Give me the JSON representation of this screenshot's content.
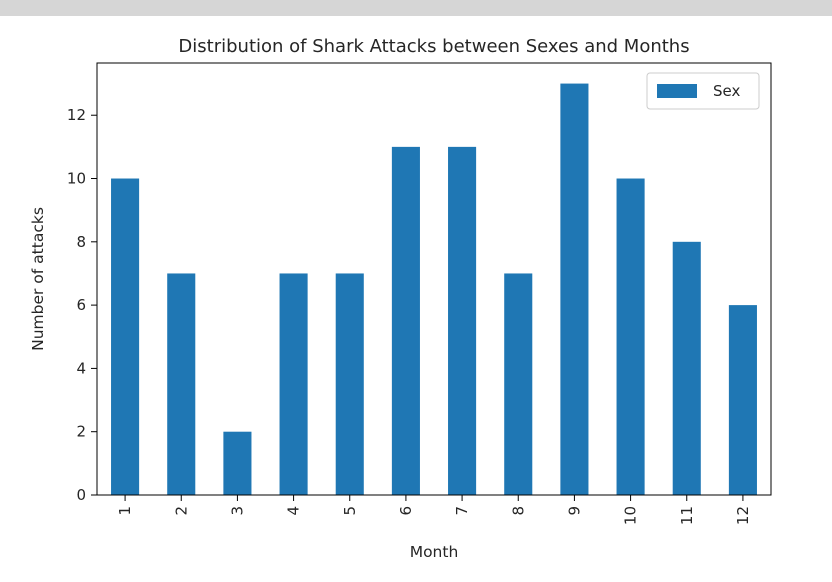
{
  "chart_data": {
    "type": "bar",
    "title": "Distribution of Shark Attacks between Sexes and Months",
    "xlabel": "Month",
    "ylabel": "Number of attacks",
    "categories": [
      "1",
      "2",
      "3",
      "4",
      "5",
      "6",
      "7",
      "8",
      "9",
      "10",
      "11",
      "12"
    ],
    "series": [
      {
        "name": "Sex",
        "values": [
          10,
          7,
          2,
          7,
          7,
          11,
          11,
          7,
          13,
          10,
          8,
          6
        ]
      }
    ],
    "ylim": [
      0,
      13.65
    ],
    "yticks": [
      0,
      2,
      4,
      6,
      8,
      10,
      12
    ],
    "grid": false,
    "legend_position": "top-right",
    "bar_color": "#1f77b4"
  }
}
